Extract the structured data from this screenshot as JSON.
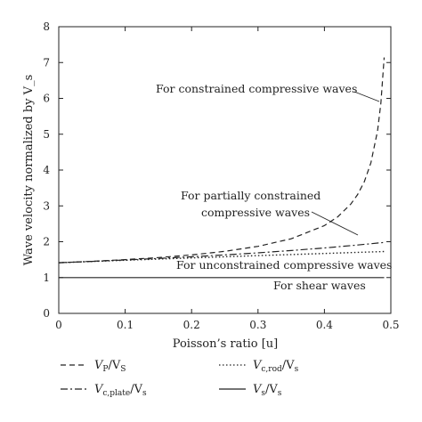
{
  "chart_data": {
    "type": "line",
    "ylabel": "Wave velocity normalized by V_s",
    "xlabel": "Poisson’s ratio [u]",
    "xlim": [
      0,
      0.5
    ],
    "ylim": [
      0,
      8
    ],
    "x_ticks": [
      "0",
      "0.1",
      "0.2",
      "0.3",
      "0.4",
      "0.5"
    ],
    "y_ticks": [
      "0",
      "1",
      "2",
      "3",
      "4",
      "5",
      "6",
      "7",
      "8"
    ],
    "grid": false,
    "series": [
      {
        "key": "vp",
        "dash": "dashed",
        "x": [
          0,
          0.05,
          0.1,
          0.15,
          0.2,
          0.25,
          0.3,
          0.35,
          0.4,
          0.42,
          0.44,
          0.45,
          0.46,
          0.47,
          0.48,
          0.485,
          0.49
        ],
        "values": [
          1.414,
          1.453,
          1.5,
          1.558,
          1.633,
          1.732,
          1.871,
          2.082,
          2.449,
          2.693,
          3.055,
          3.317,
          3.674,
          4.201,
          5.099,
          5.863,
          7.141
        ]
      },
      {
        "key": "vplate",
        "dash": "dash-dot",
        "x": [
          0,
          0.05,
          0.1,
          0.15,
          0.2,
          0.25,
          0.3,
          0.35,
          0.4,
          0.45,
          0.49
        ],
        "values": [
          1.414,
          1.451,
          1.491,
          1.534,
          1.581,
          1.633,
          1.69,
          1.754,
          1.826,
          1.907,
          1.98
        ]
      },
      {
        "key": "vrod",
        "dash": "dotted",
        "x": [
          0,
          0.1,
          0.2,
          0.3,
          0.4,
          0.49
        ],
        "values": [
          1.414,
          1.483,
          1.549,
          1.612,
          1.673,
          1.726
        ]
      },
      {
        "key": "vs",
        "dash": "solid",
        "x": [
          0,
          0.49
        ],
        "values": [
          1,
          1
        ]
      }
    ],
    "annotations": {
      "constrained": "For constrained compressive waves",
      "partial_line1": "For partially constrained",
      "partial_line2": "compressive waves",
      "unconstrained": "For unconstrained compressive waves",
      "shear": "For shear waves"
    },
    "legend": {
      "placement": "bottom",
      "items": [
        {
          "key": "vp",
          "main": "V",
          "sub": "P",
          "tail": "/V",
          "tail_sub": "S"
        },
        {
          "key": "vrod",
          "main": "V",
          "sub": "c,rod",
          "tail": "/V",
          "tail_sub": "s"
        },
        {
          "key": "vplate",
          "main": "V",
          "sub": "c,plate",
          "tail": "/V",
          "tail_sub": "s"
        },
        {
          "key": "vs",
          "main": "V",
          "sub": "s",
          "tail": "/V",
          "tail_sub": "s"
        }
      ]
    }
  }
}
